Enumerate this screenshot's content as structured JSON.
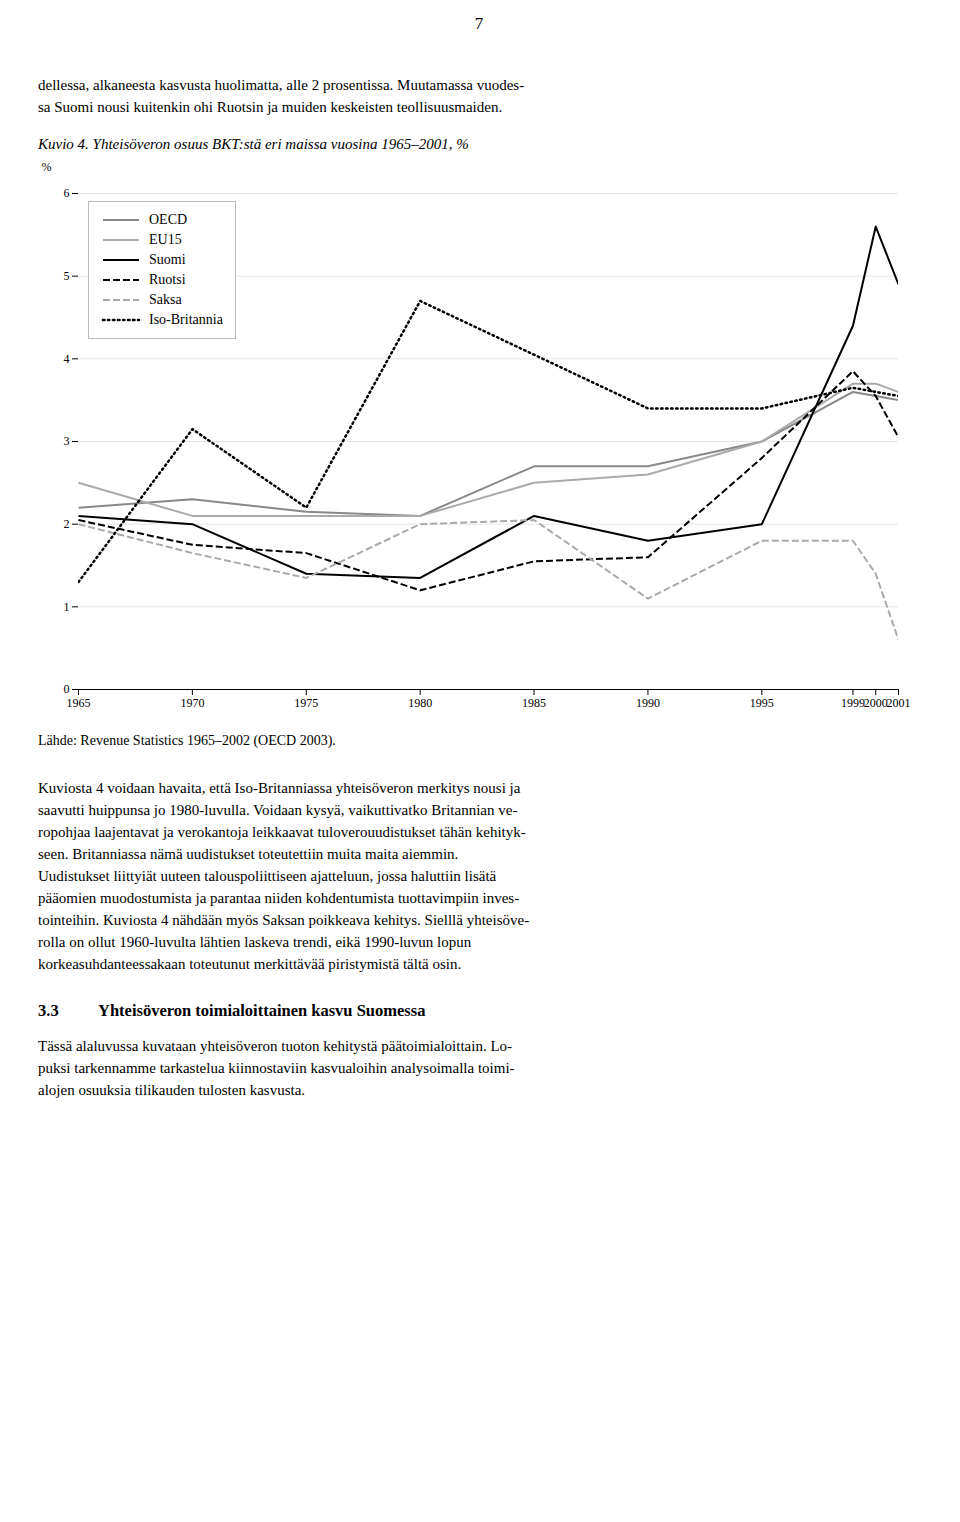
{
  "page": {
    "page_number": "7",
    "text_above": [
      "dellessa, alkaneesta kasvusta huolimatta, alle 2 prosentissa. Muutamassa vuodes-",
      "sa Suomi nousi kuitenkin ohi Ruotsin ja muiden keskeisten teollisuusmaiden."
    ],
    "body": [
      "Kuviosta 4 voidaan havaita, että Iso-Britanniassa yhteisöveron merkitys nousi ja",
      "saavutti huippunsa jo 1980-luvulla. Voidaan kysyä, vaikuttivatko Britannian ve-",
      "ropohjaa laajentavat ja verokantoja leikkaavat tuloverouudistukset tähän kehityk-",
      "seen. Britanniassa nämä uudistukset toteutettiin muita maita aiemmin.",
      "Uudistukset liittyiät uuteen talouspoliittiseen ajatteluun, jossa haluttiin lisätä",
      "pääomien muodostumista ja parantaa niiden kohdentumista tuottavimpiin inves-",
      "tointeihin. Kuviosta 4 nähdään myös Saksan poikkeava kehitys. Sielllä yhteisöve-",
      "rolla on ollut 1960-luvulta lähtien laskeva trendi, eikä 1990-luvun lopun",
      "korkeasuhdanteessakaan toteutunut merkittävää piristymistä tältä osin."
    ],
    "section_heading": [
      "3.3",
      "Yhteisöveron toimialoittainen kasvu Suomessa"
    ],
    "section_body": [
      "Tässä alaluvussa kuvataan yhteisöveron tuoton kehitystä päätoimialoittain. Lo-",
      "puksi tarkennamme tarkastelua kiinnostaviin kasvualoihin analysoimalla toimi-",
      "alojen osuuksia tilikauden tulosten kasvusta."
    ]
  },
  "chart_data": {
    "type": "line",
    "title": "Kuvio 4. Yhteisöveron osuus BKT:stä eri maissa vuosina 1965–2001, %",
    "ylabel": "%",
    "annotations": [
      "Lähde: Revenue Statistics 1965–2002 (OECD 2003)."
    ],
    "x": [
      1965,
      1970,
      1975,
      1980,
      1985,
      1990,
      1995,
      1999,
      2000,
      2001
    ],
    "series": [
      {
        "name": "OECD",
        "color": "#888888",
        "line_style": "solid",
        "values": [
          2.2,
          2.3,
          2.15,
          2.1,
          2.7,
          2.7,
          3.0,
          3.6,
          3.55,
          3.5
        ]
      },
      {
        "name": "EU15",
        "color": "#aaaaaa",
        "line_style": "solid",
        "values": [
          2.5,
          2.1,
          2.1,
          2.1,
          2.5,
          2.6,
          3.0,
          3.7,
          3.7,
          3.6
        ]
      },
      {
        "name": "Suomi",
        "color": "#000000",
        "line_style": "solid",
        "values": [
          2.1,
          2.0,
          1.4,
          1.35,
          2.1,
          1.8,
          2.0,
          4.4,
          5.6,
          4.9
        ]
      },
      {
        "name": "Ruotsi",
        "color": "#000000",
        "line_style": "dashed",
        "values": [
          2.05,
          1.75,
          1.65,
          1.2,
          1.55,
          1.6,
          2.8,
          3.85,
          3.55,
          3.05
        ]
      },
      {
        "name": "Saksa",
        "color": "#aaaaaa",
        "line_style": "dashed",
        "values": [
          2.0,
          1.65,
          1.35,
          2.0,
          2.05,
          1.1,
          1.8,
          1.8,
          1.4,
          0.6
        ]
      },
      {
        "name": "Iso-Britannia",
        "color": "#000000",
        "line_style": "dotted",
        "values": [
          1.3,
          3.15,
          2.2,
          4.7,
          4.05,
          3.4,
          3.4,
          3.65,
          3.6,
          3.55
        ]
      }
    ],
    "xlim": [
      1965,
      2001
    ],
    "xticks": [
      1965,
      1970,
      1975,
      1980,
      1985,
      1990,
      1995,
      1999,
      2000,
      2001
    ],
    "ylim": [
      0,
      6
    ],
    "yticks": [
      0,
      1,
      2,
      3,
      4,
      5,
      6
    ],
    "grid": "y",
    "legend": "upper left"
  }
}
